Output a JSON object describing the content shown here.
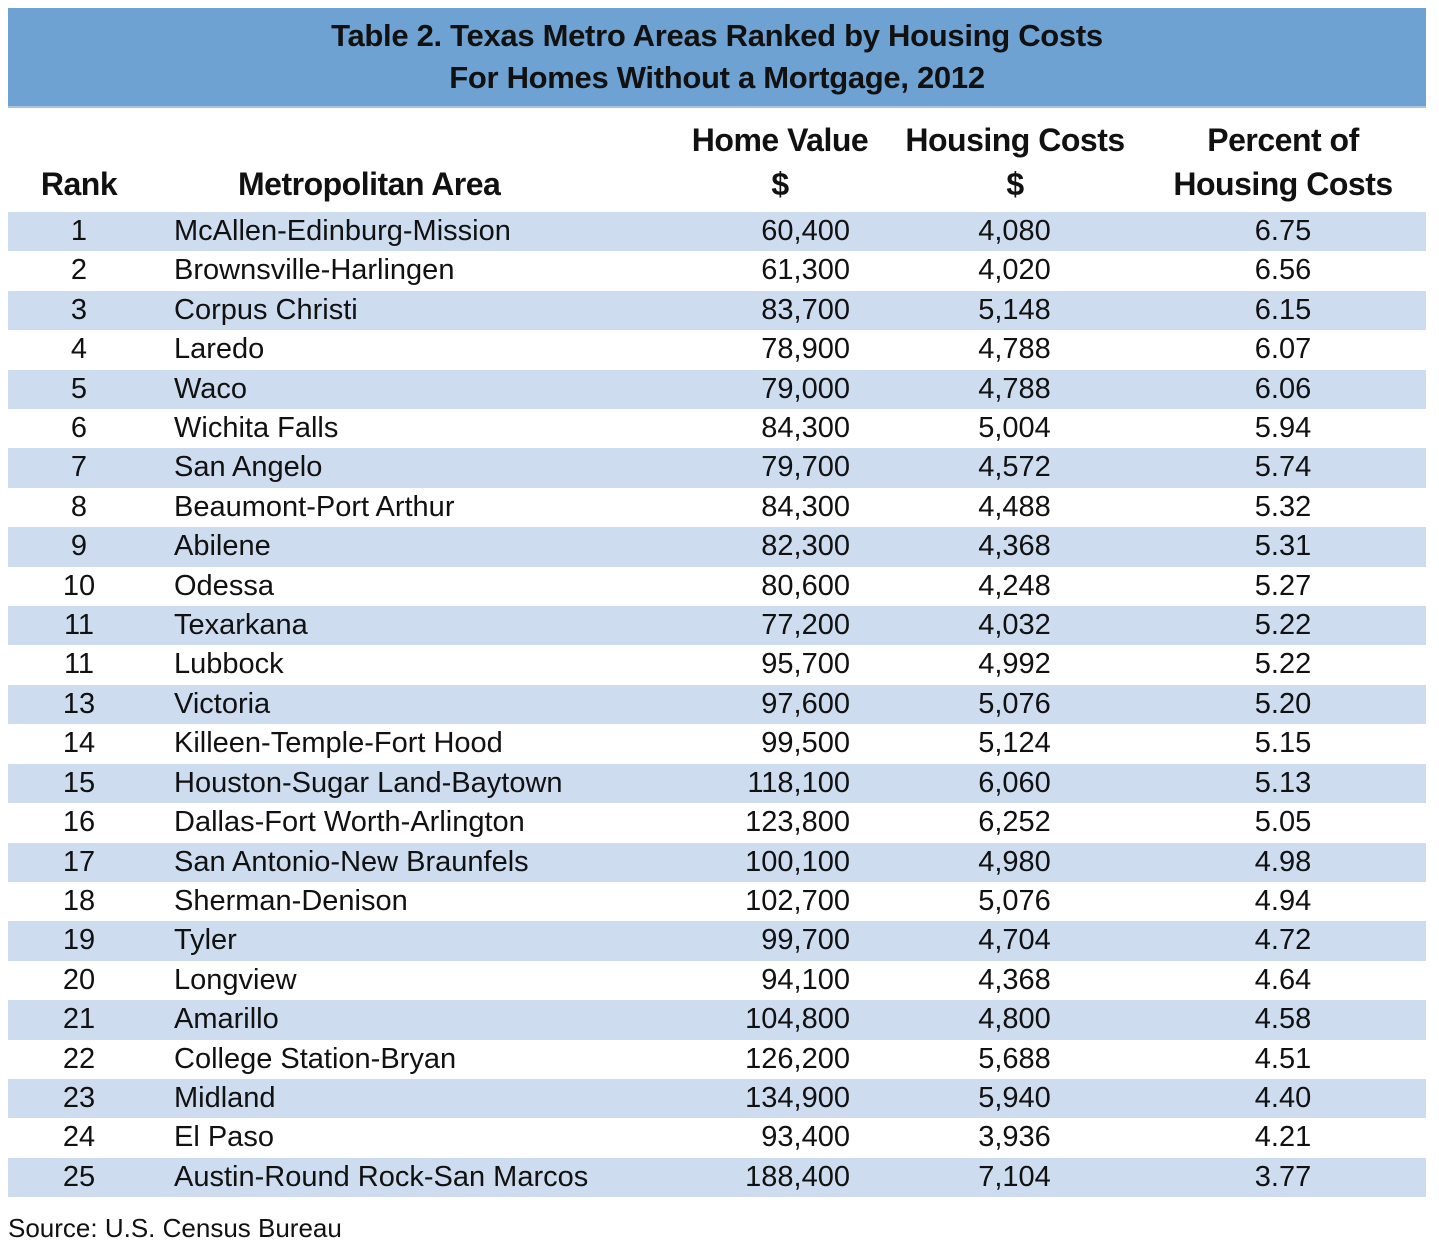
{
  "title": {
    "line1": "Table 2. Texas Metro Areas Ranked by Housing Costs",
    "line2": "For Homes Without a Mortgage, 2012"
  },
  "header": {
    "rank": "Rank",
    "area": "Metropolitan Area",
    "home_value_1": "Home Value",
    "home_value_2": "$",
    "housing_costs_1": "Housing Costs",
    "housing_costs_2": "$",
    "percent_1": "Percent of",
    "percent_2": "Housing Costs"
  },
  "rows": [
    {
      "rank": "1",
      "area": "McAllen-Edinburg-Mission",
      "home_value": "60,400",
      "housing_costs": "4,080",
      "percent": "6.75"
    },
    {
      "rank": "2",
      "area": "Brownsville-Harlingen",
      "home_value": "61,300",
      "housing_costs": "4,020",
      "percent": "6.56"
    },
    {
      "rank": "3",
      "area": "Corpus Christi",
      "home_value": "83,700",
      "housing_costs": "5,148",
      "percent": "6.15"
    },
    {
      "rank": "4",
      "area": "Laredo",
      "home_value": "78,900",
      "housing_costs": "4,788",
      "percent": "6.07"
    },
    {
      "rank": "5",
      "area": "Waco",
      "home_value": "79,000",
      "housing_costs": "4,788",
      "percent": "6.06"
    },
    {
      "rank": "6",
      "area": "Wichita Falls",
      "home_value": "84,300",
      "housing_costs": "5,004",
      "percent": "5.94"
    },
    {
      "rank": "7",
      "area": "San Angelo",
      "home_value": "79,700",
      "housing_costs": "4,572",
      "percent": "5.74"
    },
    {
      "rank": "8",
      "area": "Beaumont-Port Arthur",
      "home_value": "84,300",
      "housing_costs": "4,488",
      "percent": "5.32"
    },
    {
      "rank": "9",
      "area": "Abilene",
      "home_value": "82,300",
      "housing_costs": "4,368",
      "percent": "5.31"
    },
    {
      "rank": "10",
      "area": "Odessa",
      "home_value": "80,600",
      "housing_costs": "4,248",
      "percent": "5.27"
    },
    {
      "rank": "11",
      "area": "Texarkana",
      "home_value": "77,200",
      "housing_costs": "4,032",
      "percent": "5.22"
    },
    {
      "rank": "11",
      "area": "Lubbock",
      "home_value": "95,700",
      "housing_costs": "4,992",
      "percent": "5.22"
    },
    {
      "rank": "13",
      "area": "Victoria",
      "home_value": "97,600",
      "housing_costs": "5,076",
      "percent": "5.20"
    },
    {
      "rank": "14",
      "area": "Killeen-Temple-Fort Hood",
      "home_value": "99,500",
      "housing_costs": "5,124",
      "percent": "5.15"
    },
    {
      "rank": "15",
      "area": "Houston-Sugar Land-Baytown",
      "home_value": "118,100",
      "housing_costs": "6,060",
      "percent": "5.13"
    },
    {
      "rank": "16",
      "area": "Dallas-Fort Worth-Arlington",
      "home_value": "123,800",
      "housing_costs": "6,252",
      "percent": "5.05"
    },
    {
      "rank": "17",
      "area": "San Antonio-New Braunfels",
      "home_value": "100,100",
      "housing_costs": "4,980",
      "percent": "4.98"
    },
    {
      "rank": "18",
      "area": "Sherman-Denison",
      "home_value": "102,700",
      "housing_costs": "5,076",
      "percent": "4.94"
    },
    {
      "rank": "19",
      "area": "Tyler",
      "home_value": "99,700",
      "housing_costs": "4,704",
      "percent": "4.72"
    },
    {
      "rank": "20",
      "area": "Longview",
      "home_value": "94,100",
      "housing_costs": "4,368",
      "percent": "4.64"
    },
    {
      "rank": "21",
      "area": "Amarillo",
      "home_value": "104,800",
      "housing_costs": "4,800",
      "percent": "4.58"
    },
    {
      "rank": "22",
      "area": "College Station-Bryan",
      "home_value": "126,200",
      "housing_costs": "5,688",
      "percent": "4.51"
    },
    {
      "rank": "23",
      "area": "Midland",
      "home_value": "134,900",
      "housing_costs": "5,940",
      "percent": "4.40"
    },
    {
      "rank": "24",
      "area": "El Paso",
      "home_value": "93,400",
      "housing_costs": "3,936",
      "percent": "4.21"
    },
    {
      "rank": "25",
      "area": "Austin-Round Rock-San Marcos",
      "home_value": "188,400",
      "housing_costs": "7,104",
      "percent": "3.77"
    }
  ],
  "source": "Source: U.S. Census Bureau",
  "colors": {
    "title_band": "#6ea2d2",
    "row_stripe": "#cddcee",
    "text": "#111111"
  }
}
